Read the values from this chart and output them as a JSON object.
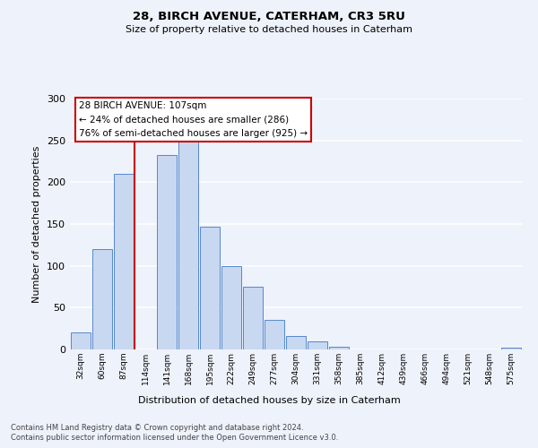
{
  "title1": "28, BIRCH AVENUE, CATERHAM, CR3 5RU",
  "title2": "Size of property relative to detached houses in Caterham",
  "xlabel": "Distribution of detached houses by size in Caterham",
  "ylabel": "Number of detached properties",
  "bin_labels": [
    "32sqm",
    "60sqm",
    "87sqm",
    "114sqm",
    "141sqm",
    "168sqm",
    "195sqm",
    "222sqm",
    "249sqm",
    "277sqm",
    "304sqm",
    "331sqm",
    "358sqm",
    "385sqm",
    "412sqm",
    "439sqm",
    "466sqm",
    "494sqm",
    "521sqm",
    "548sqm",
    "575sqm"
  ],
  "bar_heights": [
    20,
    120,
    210,
    0,
    232,
    250,
    147,
    100,
    75,
    35,
    16,
    10,
    3,
    0,
    0,
    0,
    0,
    0,
    0,
    0,
    2
  ],
  "bar_color": "#c8d8f0",
  "bar_edge_color": "#5588cc",
  "vline_x_index": 3,
  "vline_color": "#cc0000",
  "ylim": [
    0,
    300
  ],
  "yticks": [
    0,
    50,
    100,
    150,
    200,
    250,
    300
  ],
  "annotation_title": "28 BIRCH AVENUE: 107sqm",
  "annotation_line1": "← 24% of detached houses are smaller (286)",
  "annotation_line2": "76% of semi-detached houses are larger (925) →",
  "annotation_box_color": "#ffffff",
  "annotation_box_edge": "#cc0000",
  "footer1": "Contains HM Land Registry data © Crown copyright and database right 2024.",
  "footer2": "Contains public sector information licensed under the Open Government Licence v3.0.",
  "bg_color": "#eef2fb",
  "plot_bg_color": "#eef2fb",
  "grid_color": "#ffffff"
}
